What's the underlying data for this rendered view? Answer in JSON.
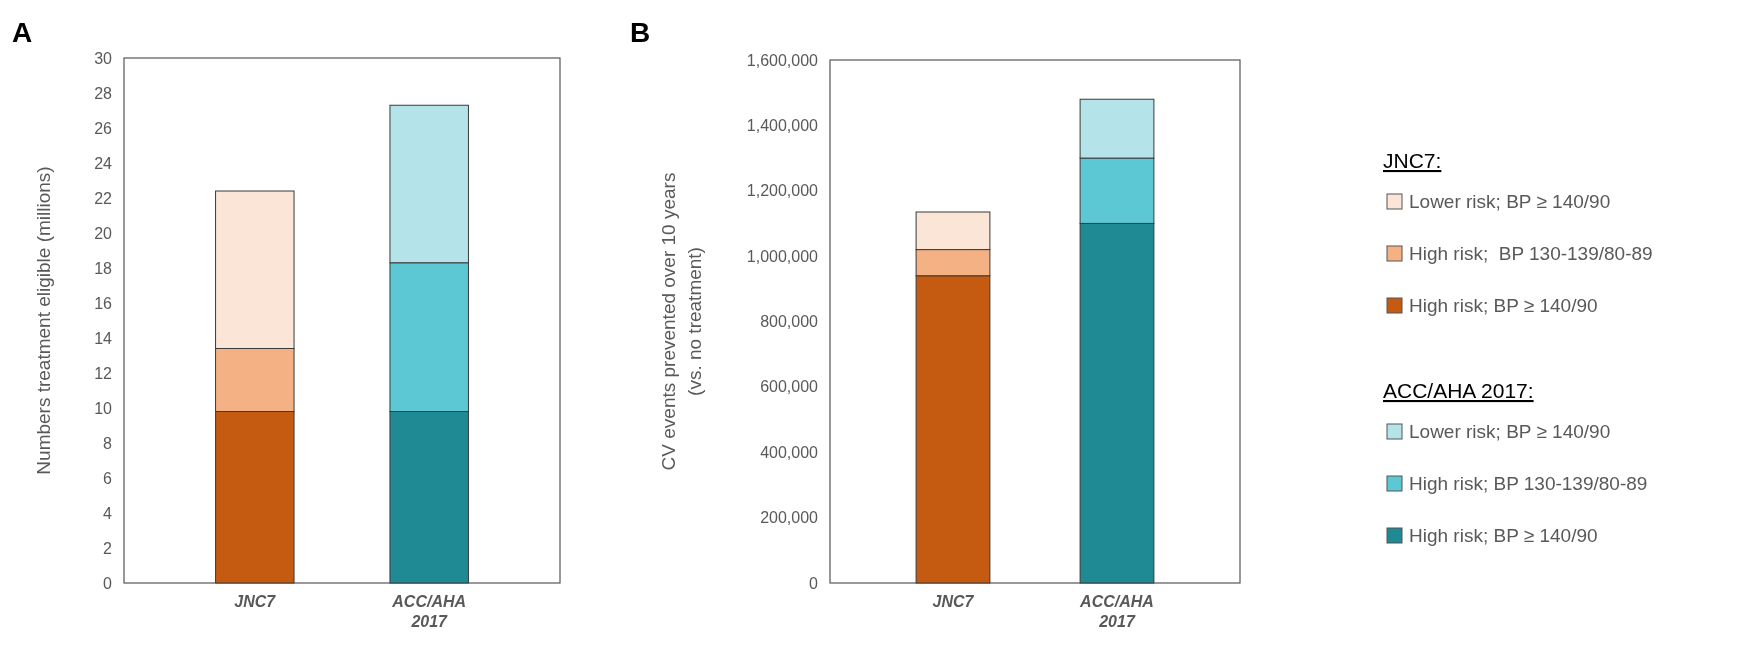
{
  "chart_data": [
    {
      "type": "bar",
      "title": "A",
      "ylabel": "Numbers treatment eligible (millions)",
      "categories": [
        "JNC7",
        "ACC/AHA 2017"
      ],
      "stacked": true,
      "ylim": [
        0,
        30
      ],
      "yticks": [
        0,
        2,
        4,
        6,
        8,
        10,
        12,
        14,
        16,
        18,
        20,
        22,
        24,
        26,
        28,
        30
      ],
      "legend": false,
      "series": [
        {
          "color": "#c55a11",
          "values": [
            9.8,
            null
          ]
        },
        {
          "color": "#f4b183",
          "values": [
            3.6,
            null
          ]
        },
        {
          "color": "#fbe5d6",
          "values": [
            9.0,
            null
          ]
        },
        {
          "color": "#1f8a94",
          "values": [
            null,
            9.8
          ]
        },
        {
          "color": "#5bc8d4",
          "values": [
            null,
            8.5
          ]
        },
        {
          "color": "#b4e4ea",
          "values": [
            null,
            9.0
          ]
        }
      ]
    },
    {
      "type": "bar",
      "title": "B",
      "ylabel": "CV events prevented over 10 years\n(vs. no treatment)",
      "categories": [
        "JNC7",
        "ACC/AHA 2017"
      ],
      "stacked": true,
      "ylim": [
        0,
        1600000
      ],
      "yticks": [
        {
          "value": 0,
          "label": "0"
        },
        {
          "value": 200000,
          "label": "200,000"
        },
        {
          "value": 400000,
          "label": "400,000"
        },
        {
          "value": 600000,
          "label": "600,000"
        },
        {
          "value": 800000,
          "label": "800,000"
        },
        {
          "value": 1000000,
          "label": "1,000,000"
        },
        {
          "value": 1200000,
          "label": "1,200,000"
        },
        {
          "value": 1400000,
          "label": "1,400,000"
        },
        {
          "value": 1600000,
          "label": "1,600,000"
        }
      ],
      "legend": "right",
      "annotations": [
        "JNC7:",
        "ACC/AHA 2017:"
      ],
      "series": [
        {
          "name": "High risk; BP ≥ 140/90",
          "color": "#c55a11",
          "values": [
            940000,
            null
          ]
        },
        {
          "name": "High risk;  BP 130-139/80-89",
          "color": "#f4b183",
          "values": [
            80000,
            null
          ]
        },
        {
          "name": "Lower risk; BP ≥ 140/90",
          "color": "#fbe5d6",
          "values": [
            115000,
            null
          ]
        },
        {
          "name": "High risk; BP ≥ 140/90",
          "color": "#1f8a94",
          "values": [
            null,
            1100000
          ]
        },
        {
          "name": "High risk; BP 130-139/80-89",
          "color": "#5bc8d4",
          "values": [
            null,
            200000
          ]
        },
        {
          "name": "Lower risk; BP ≥ 140/90",
          "color": "#b4e4ea",
          "values": [
            null,
            180000
          ]
        }
      ]
    }
  ]
}
